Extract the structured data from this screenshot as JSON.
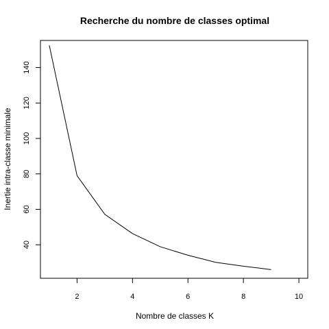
{
  "chart_data": {
    "type": "line",
    "title": "Recherche du nombre de classes optimal",
    "xlabel": "Nombre de classes K",
    "ylabel": "Inertie intra-classe minimale",
    "x": [
      1,
      2,
      3,
      4,
      5,
      6,
      7,
      8,
      9
    ],
    "series": [
      {
        "values": [
          152.5,
          79,
          57.2,
          46.3,
          38.9,
          34.1,
          30.1,
          27.9,
          26.0
        ]
      }
    ],
    "xlim": [
      0.68,
      10.32
    ],
    "ylim": [
      21.1,
      155.3
    ],
    "xticks": [
      2,
      4,
      6,
      8,
      10
    ],
    "xtick_labels": [
      "2",
      "4",
      "6",
      "8",
      "10"
    ],
    "yticks": [
      40,
      60,
      80,
      100,
      120,
      140
    ],
    "ytick_labels": [
      "40",
      "60",
      "80",
      "100",
      "120",
      "140"
    ],
    "grid": false,
    "legend": "none",
    "line_color": "#000000"
  }
}
